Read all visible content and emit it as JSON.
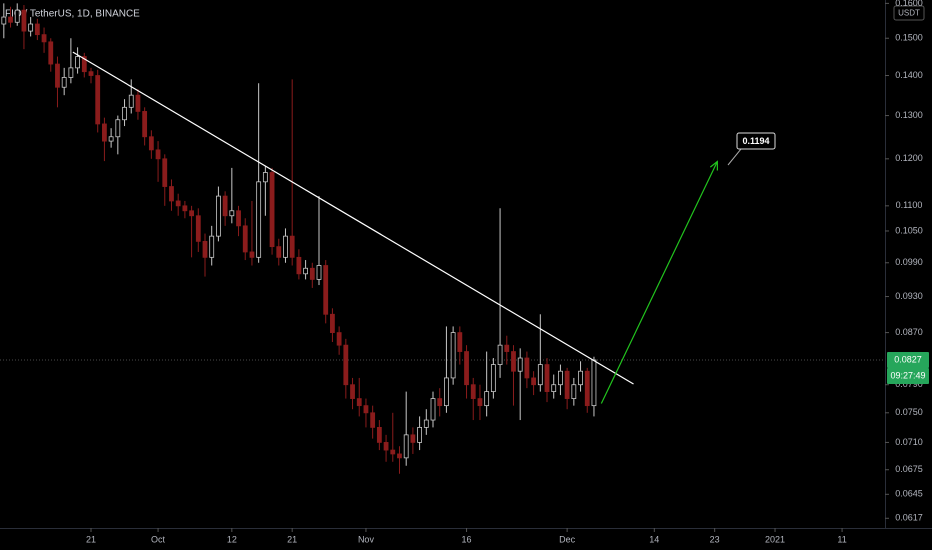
{
  "chart_data": {
    "type": "candlestick",
    "title": "FIO / TetherUS, 1D, BINANCE",
    "currency": "USDT",
    "countdown": "09:27:49",
    "last_price": 0.0827,
    "up_color": "#c8c8c8",
    "down_color": "#8b1c1c",
    "log": true,
    "grid": false,
    "ylim": [
      0.0606,
      0.161
    ],
    "xlim": [
      -0.57,
      131.4
    ],
    "yticks": [
      {
        "value": 0.16,
        "label": "0.1600"
      },
      {
        "value": 0.15,
        "label": "0.1500"
      },
      {
        "value": 0.14,
        "label": "0.1400"
      },
      {
        "value": 0.13,
        "label": "0.1300"
      },
      {
        "value": 0.12,
        "label": "0.1200"
      },
      {
        "value": 0.11,
        "label": "0.1100"
      },
      {
        "value": 0.105,
        "label": "0.1050"
      },
      {
        "value": 0.099,
        "label": "0.0990"
      },
      {
        "value": 0.093,
        "label": "0.0930"
      },
      {
        "value": 0.087,
        "label": "0.0870"
      },
      {
        "value": 0.079,
        "label": "0.0790"
      },
      {
        "value": 0.075,
        "label": "0.0750"
      },
      {
        "value": 0.071,
        "label": "0.0710"
      },
      {
        "value": 0.0675,
        "label": "0.0675"
      },
      {
        "value": 0.0645,
        "label": "0.0645"
      },
      {
        "value": 0.0617,
        "label": "0.0617"
      }
    ],
    "xticks": [
      {
        "value": 13,
        "label": "21"
      },
      {
        "value": 23,
        "label": "Oct"
      },
      {
        "value": 34,
        "label": "12"
      },
      {
        "value": 43,
        "label": "21"
      },
      {
        "value": 54,
        "label": "Nov"
      },
      {
        "value": 69,
        "label": "16"
      },
      {
        "value": 84,
        "label": "Dec"
      },
      {
        "value": 97,
        "label": "14"
      },
      {
        "value": 106,
        "label": "23"
      },
      {
        "value": 115,
        "label": "2021"
      },
      {
        "value": 125,
        "label": "11"
      }
    ],
    "open": [
      0.154,
      0.156,
      0.1545,
      0.158,
      0.152,
      0.154,
      0.151,
      0.149,
      0.143,
      0.137,
      0.1395,
      0.142,
      0.145,
      0.141,
      0.14,
      0.128,
      0.124,
      0.125,
      0.129,
      0.132,
      0.135,
      0.131,
      0.125,
      0.122,
      0.12,
      0.114,
      0.111,
      0.11,
      0.109,
      0.108,
      0.103,
      0.1,
      0.104,
      0.112,
      0.108,
      0.109,
      0.106,
      0.101,
      0.1,
      0.115,
      0.117,
      0.102,
      0.1,
      0.104,
      0.1,
      0.097,
      0.098,
      0.096,
      0.0985,
      0.09,
      0.087,
      0.085,
      0.079,
      0.077,
      0.076,
      0.075,
      0.073,
      0.071,
      0.07,
      0.0695,
      0.069,
      0.072,
      0.071,
      0.073,
      0.074,
      0.077,
      0.076,
      0.08,
      0.087,
      0.084,
      0.079,
      0.077,
      0.076,
      0.078,
      0.082,
      0.085,
      0.084,
      0.081,
      0.083,
      0.08,
      0.079,
      0.082,
      0.078,
      0.079,
      0.081,
      0.077,
      0.079,
      0.081,
      0.076
    ],
    "high": [
      0.16,
      0.159,
      0.16,
      0.1595,
      0.156,
      0.1555,
      0.153,
      0.15,
      0.145,
      0.142,
      0.15,
      0.1475,
      0.146,
      0.142,
      0.1415,
      0.1295,
      0.127,
      0.13,
      0.134,
      0.139,
      0.1365,
      0.132,
      0.1265,
      0.124,
      0.121,
      0.1155,
      0.1125,
      0.111,
      0.11,
      0.1095,
      0.1045,
      0.106,
      0.114,
      0.113,
      0.118,
      0.11,
      0.1075,
      0.111,
      0.138,
      0.1185,
      0.118,
      0.1035,
      0.1055,
      0.139,
      0.1015,
      0.0995,
      0.099,
      0.112,
      0.0995,
      0.091,
      0.088,
      0.086,
      0.08,
      0.08,
      0.077,
      0.076,
      0.074,
      0.072,
      0.075,
      0.0705,
      0.078,
      0.073,
      0.0745,
      0.0755,
      0.078,
      0.0785,
      0.088,
      0.088,
      0.088,
      0.085,
      0.08,
      0.079,
      0.084,
      0.083,
      0.1095,
      0.0865,
      0.085,
      0.0845,
      0.084,
      0.081,
      0.09,
      0.083,
      0.0805,
      0.082,
      0.0815,
      0.08,
      0.0825,
      0.0815,
      0.0832
    ],
    "low": [
      0.15,
      0.153,
      0.1535,
      0.147,
      0.1505,
      0.1495,
      0.146,
      0.141,
      0.132,
      0.135,
      0.138,
      0.1405,
      0.1395,
      0.138,
      0.126,
      0.1195,
      0.1225,
      0.121,
      0.1275,
      0.1305,
      0.129,
      0.123,
      0.12,
      0.115,
      0.11,
      0.109,
      0.108,
      0.1075,
      0.1,
      0.101,
      0.0965,
      0.0985,
      0.103,
      0.106,
      0.1065,
      0.104,
      0.0995,
      0.0985,
      0.099,
      0.108,
      0.1005,
      0.0985,
      0.099,
      0.0985,
      0.096,
      0.096,
      0.0945,
      0.095,
      0.0885,
      0.0855,
      0.0835,
      0.077,
      0.0755,
      0.0745,
      0.073,
      0.0715,
      0.07,
      0.0685,
      0.0685,
      0.067,
      0.068,
      0.0695,
      0.07,
      0.072,
      0.073,
      0.0745,
      0.075,
      0.079,
      0.082,
      0.077,
      0.074,
      0.074,
      0.0745,
      0.077,
      0.08,
      0.082,
      0.076,
      0.074,
      0.0785,
      0.0775,
      0.078,
      0.0765,
      0.077,
      0.0775,
      0.0755,
      0.076,
      0.078,
      0.075,
      0.0745
    ],
    "close": [
      0.156,
      0.1545,
      0.158,
      0.152,
      0.154,
      0.151,
      0.149,
      0.143,
      0.137,
      0.1395,
      0.142,
      0.145,
      0.141,
      0.14,
      0.128,
      0.124,
      0.125,
      0.129,
      0.132,
      0.135,
      0.131,
      0.125,
      0.122,
      0.12,
      0.114,
      0.111,
      0.11,
      0.109,
      0.108,
      0.103,
      0.1,
      0.104,
      0.112,
      0.108,
      0.109,
      0.106,
      0.101,
      0.1,
      0.115,
      0.117,
      0.102,
      0.1,
      0.104,
      0.1,
      0.097,
      0.098,
      0.096,
      0.0985,
      0.09,
      0.087,
      0.085,
      0.079,
      0.077,
      0.076,
      0.075,
      0.073,
      0.071,
      0.07,
      0.0695,
      0.069,
      0.072,
      0.071,
      0.073,
      0.074,
      0.077,
      0.076,
      0.08,
      0.087,
      0.084,
      0.079,
      0.077,
      0.076,
      0.078,
      0.082,
      0.085,
      0.084,
      0.081,
      0.083,
      0.08,
      0.079,
      0.082,
      0.078,
      0.079,
      0.081,
      0.077,
      0.079,
      0.081,
      0.076,
      0.0827
    ],
    "trendline": {
      "color": "#ffffff",
      "x": [
        10.3,
        93.9
      ],
      "y": [
        0.1462,
        0.0791
      ]
    },
    "arrow": {
      "color": "#22c41e",
      "x": [
        89.1,
        106.4
      ],
      "y": [
        0.0763,
        0.1194
      ]
    },
    "target": 0.1194
  }
}
